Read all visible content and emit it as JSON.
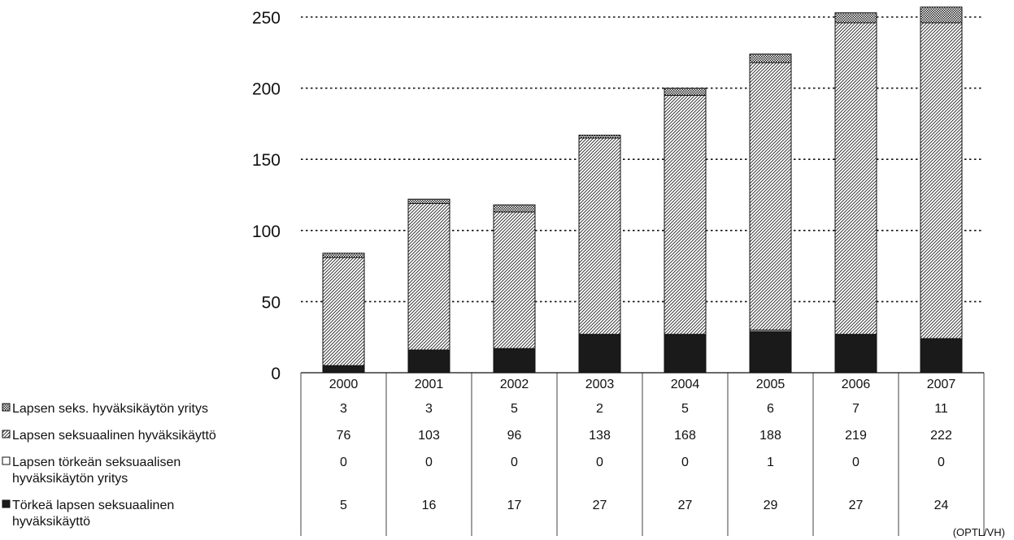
{
  "chart_data": {
    "type": "bar",
    "stacked": true,
    "categories": [
      "2000",
      "2001",
      "2002",
      "2003",
      "2004",
      "2005",
      "2006",
      "2007"
    ],
    "series": [
      {
        "name": "Törkeä lapsen seksuaalinen hyväksikäyttö",
        "name_lines": [
          "Törkeä lapsen seksuaalinen",
          "hyväksikäyttö"
        ],
        "pattern": "solid",
        "values": [
          5,
          16,
          17,
          27,
          27,
          29,
          27,
          24
        ]
      },
      {
        "name": "Lapsen törkeän seksuaalisen hyväksikäytön yritys",
        "name_lines": [
          "Lapsen törkeän seksuaalisen",
          "hyväksikäytön yritys"
        ],
        "pattern": "white",
        "values": [
          0,
          0,
          0,
          0,
          0,
          1,
          0,
          0
        ]
      },
      {
        "name": "Lapsen seksuaalinen hyväksikäyttö",
        "name_lines": [
          "Lapsen seksuaalinen hyväksikäyttö"
        ],
        "pattern": "diagonal",
        "values": [
          76,
          103,
          96,
          138,
          168,
          188,
          219,
          222
        ]
      },
      {
        "name": "Lapsen seks. hyväksikäytön yritys",
        "name_lines": [
          "Lapsen seks. hyväksikäytön yritys"
        ],
        "pattern": "crosshatch",
        "values": [
          3,
          3,
          5,
          2,
          5,
          6,
          7,
          11
        ]
      }
    ],
    "table_order": [
      3,
      2,
      1,
      0
    ],
    "yticks": [
      0,
      50,
      100,
      150,
      200,
      250
    ],
    "ylim": [
      0,
      250
    ],
    "grid": "horizontal dotted",
    "legend": "data table below the chart",
    "source": "(OPTL/VH)"
  }
}
